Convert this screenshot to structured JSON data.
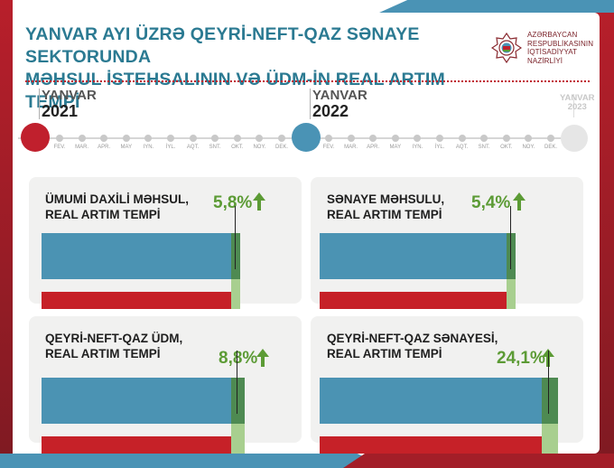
{
  "title_lines": [
    "YANVAR AYI ÜZRƏ QEYRİ-NEFT-QAZ SƏNAYE SEKTORUNDA",
    "MƏHSUL İSTEHSALININ VƏ ÜDM-İN REAL ARTIM TEMPİ"
  ],
  "logo": {
    "emblem": "ministry-emblem-icon",
    "lines": [
      "AZƏRBAYCAN",
      "RESPUBLİKASININ",
      "İQTİSADİYYAT",
      "NAZİRLİYİ"
    ]
  },
  "timeline": {
    "years": [
      {
        "month": "YANVAR",
        "year": "2021",
        "color": "#c0202d"
      },
      {
        "month": "YANVAR",
        "year": "2022",
        "color": "#4a93b5"
      },
      {
        "month": "YANVAR",
        "year": "2023",
        "color": "#e6e6e6"
      }
    ],
    "months_2021": [
      "FEV.",
      "MAR.",
      "APR.",
      "MAY",
      "IYN.",
      "İYL.",
      "AQT.",
      "SNT.",
      "OKT.",
      "NOY.",
      "DEK."
    ],
    "months_2022": [
      "FEV.",
      "MAR.",
      "APR.",
      "MAY",
      "IYN.",
      "İYL.",
      "AQT.",
      "SNT.",
      "OKT.",
      "NOY.",
      "DEK."
    ]
  },
  "panels": [
    {
      "title": [
        "ÜMUMİ DAXİLİ MƏHSUL,",
        "REAL ARTIM TEMPİ"
      ],
      "value": "5,8%",
      "growth_pct": 5.8
    },
    {
      "title": [
        "SƏNAYE MƏHSULU,",
        "REAL ARTIM TEMPİ"
      ],
      "value": "5,4%",
      "growth_pct": 5.4
    },
    {
      "title": [
        "QEYRİ-NEFT-QAZ ÜDM,",
        "REAL ARTIM TEMPİ"
      ],
      "value": "8,8%",
      "growth_pct": 8.8
    },
    {
      "title": [
        "QEYRİ-NEFT-QAZ SƏNAYESİ,",
        "REAL ARTIM TEMPİ"
      ],
      "value": "24,1%",
      "growth_pct": 24.1
    }
  ],
  "colors": {
    "title": "#2b7a92",
    "value": "#5c9b35",
    "bar_current": "#4b93b3",
    "bar_previous": "#c62128",
    "growth_dark": "#4e8a52",
    "growth_light": "#a8cf8f"
  }
}
